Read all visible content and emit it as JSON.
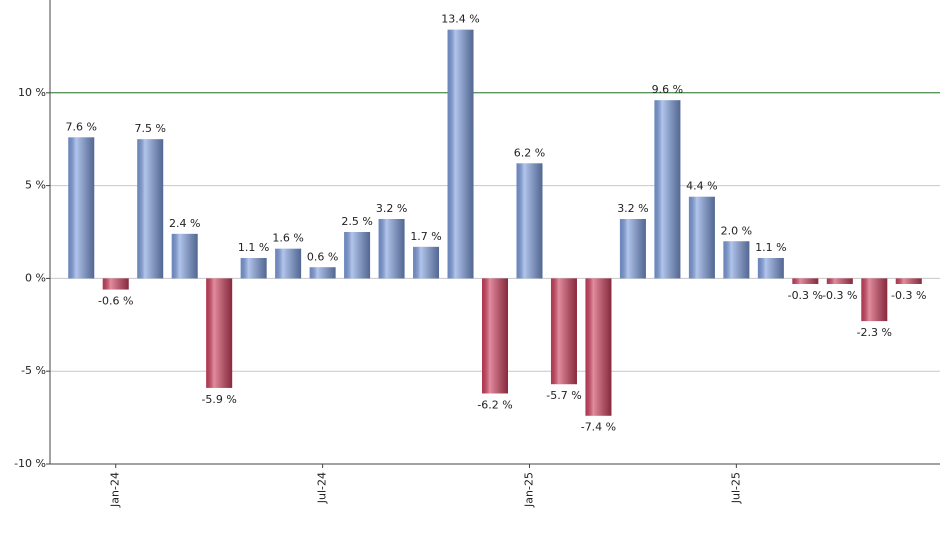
{
  "chart_data": {
    "type": "bar",
    "categories": [
      null,
      "Jan-24",
      null,
      null,
      null,
      null,
      null,
      "Jul-24",
      null,
      null,
      null,
      null,
      null,
      "Jan-25",
      null,
      null,
      null,
      null,
      null,
      "Jul-25",
      null,
      null,
      null,
      null,
      null
    ],
    "values": [
      7.6,
      -0.6,
      7.5,
      2.4,
      -5.9,
      1.1,
      1.6,
      0.6,
      2.5,
      3.2,
      1.7,
      13.4,
      -6.2,
      6.2,
      -5.7,
      -7.4,
      3.2,
      9.6,
      4.4,
      2.0,
      1.1,
      -0.3,
      -0.3,
      -2.3,
      -0.3
    ],
    "value_labels": [
      "7.6 %",
      "-0.6 %",
      "7.5 %",
      "2.4 %",
      "-5.9 %",
      "1.1 %",
      "1.6 %",
      "0.6 %",
      "2.5 %",
      "3.2 %",
      "1.7 %",
      "13.4 %",
      "-6.2 %",
      "6.2 %",
      "-5.7 %",
      "-7.4 %",
      "3.2 %",
      "9.6 %",
      "4.4 %",
      "2.0 %",
      "1.1 %",
      "-0.3 %",
      "-0.3 %",
      "-2.3 %",
      "-0.3 %"
    ],
    "positive_color": "#7f9fe0",
    "negative_color": "#d0405f",
    "ylim": [
      -10,
      15
    ],
    "yticks": [
      {
        "value": -10,
        "label": "-10 %"
      },
      {
        "value": -5,
        "label": "-5 %"
      },
      {
        "value": 0,
        "label": "0 %"
      },
      {
        "value": 5,
        "label": "5 %"
      },
      {
        "value": 10,
        "label": "10 %"
      }
    ],
    "reference_line": 10,
    "reference_color": "#2e7d32",
    "grid": true
  }
}
